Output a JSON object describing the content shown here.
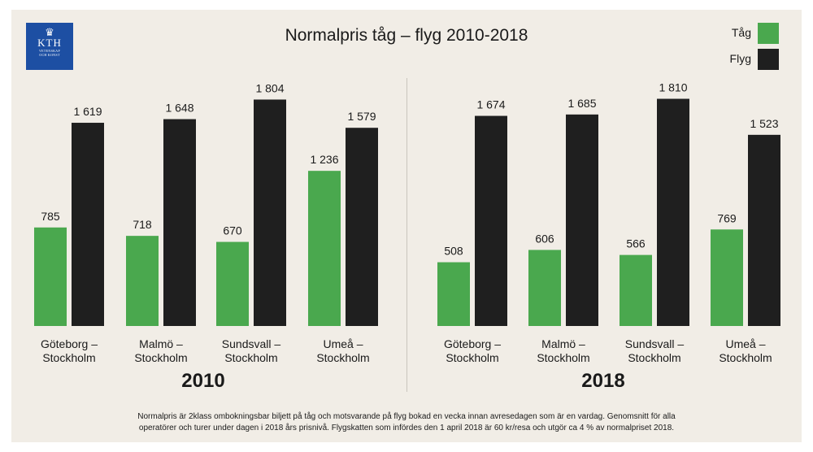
{
  "logo": {
    "crown": "♛",
    "word": "KTH",
    "line1": "VETENSKAP",
    "line2": "OCH KONST"
  },
  "title": "Normalpris tåg – flyg 2010-2018",
  "legend": [
    {
      "label": "Tåg",
      "color": "#4aa84e"
    },
    {
      "label": "Flyg",
      "color": "#1f1f1f"
    }
  ],
  "chart_data": [
    {
      "type": "bar",
      "year_label": "2010",
      "categories": [
        [
          "Göteborg –",
          "Stockholm"
        ],
        [
          "Malmö –",
          "Stockholm"
        ],
        [
          "Sundsvall –",
          "Stockholm"
        ],
        [
          "Umeå –",
          "Stockholm"
        ]
      ],
      "series": [
        {
          "name": "Tåg",
          "values": [
            785,
            718,
            670,
            1236
          ],
          "labels": [
            "785",
            "718",
            "670",
            "1 236"
          ],
          "color": "#4aa84e"
        },
        {
          "name": "Flyg",
          "values": [
            1619,
            1648,
            1804,
            1579
          ],
          "labels": [
            "1 619",
            "1 648",
            "1 804",
            "1 579"
          ],
          "color": "#1f1f1f"
        }
      ],
      "ylim": [
        0,
        1900
      ],
      "grid": false,
      "legend": "top-right"
    },
    {
      "type": "bar",
      "year_label": "2018",
      "categories": [
        [
          "Göteborg –",
          "Stockholm"
        ],
        [
          "Malmö –",
          "Stockholm"
        ],
        [
          "Sundsvall –",
          "Stockholm"
        ],
        [
          "Umeå –",
          "Stockholm"
        ]
      ],
      "series": [
        {
          "name": "Tåg",
          "values": [
            508,
            606,
            566,
            769
          ],
          "labels": [
            "508",
            "606",
            "566",
            "769"
          ],
          "color": "#4aa84e"
        },
        {
          "name": "Flyg",
          "values": [
            1674,
            1685,
            1810,
            1523
          ],
          "labels": [
            "1 674",
            "1 685",
            "1 810",
            "1 523"
          ],
          "color": "#1f1f1f"
        }
      ],
      "ylim": [
        0,
        1900
      ],
      "grid": false,
      "legend": "top-right"
    }
  ],
  "footnote": {
    "line1": "Normalpris är 2klass ombokningsbar biljett på tåg och motsvarande på flyg bokad en vecka innan avresedagen som är en vardag. Genomsnitt för alla",
    "line2": "operatörer och turer under dagen i 2018 års prisnivå. Flygskatten som infördes den 1 april 2018 är 60 kr/resa och utgör ca 4 % av normalpriset 2018."
  }
}
